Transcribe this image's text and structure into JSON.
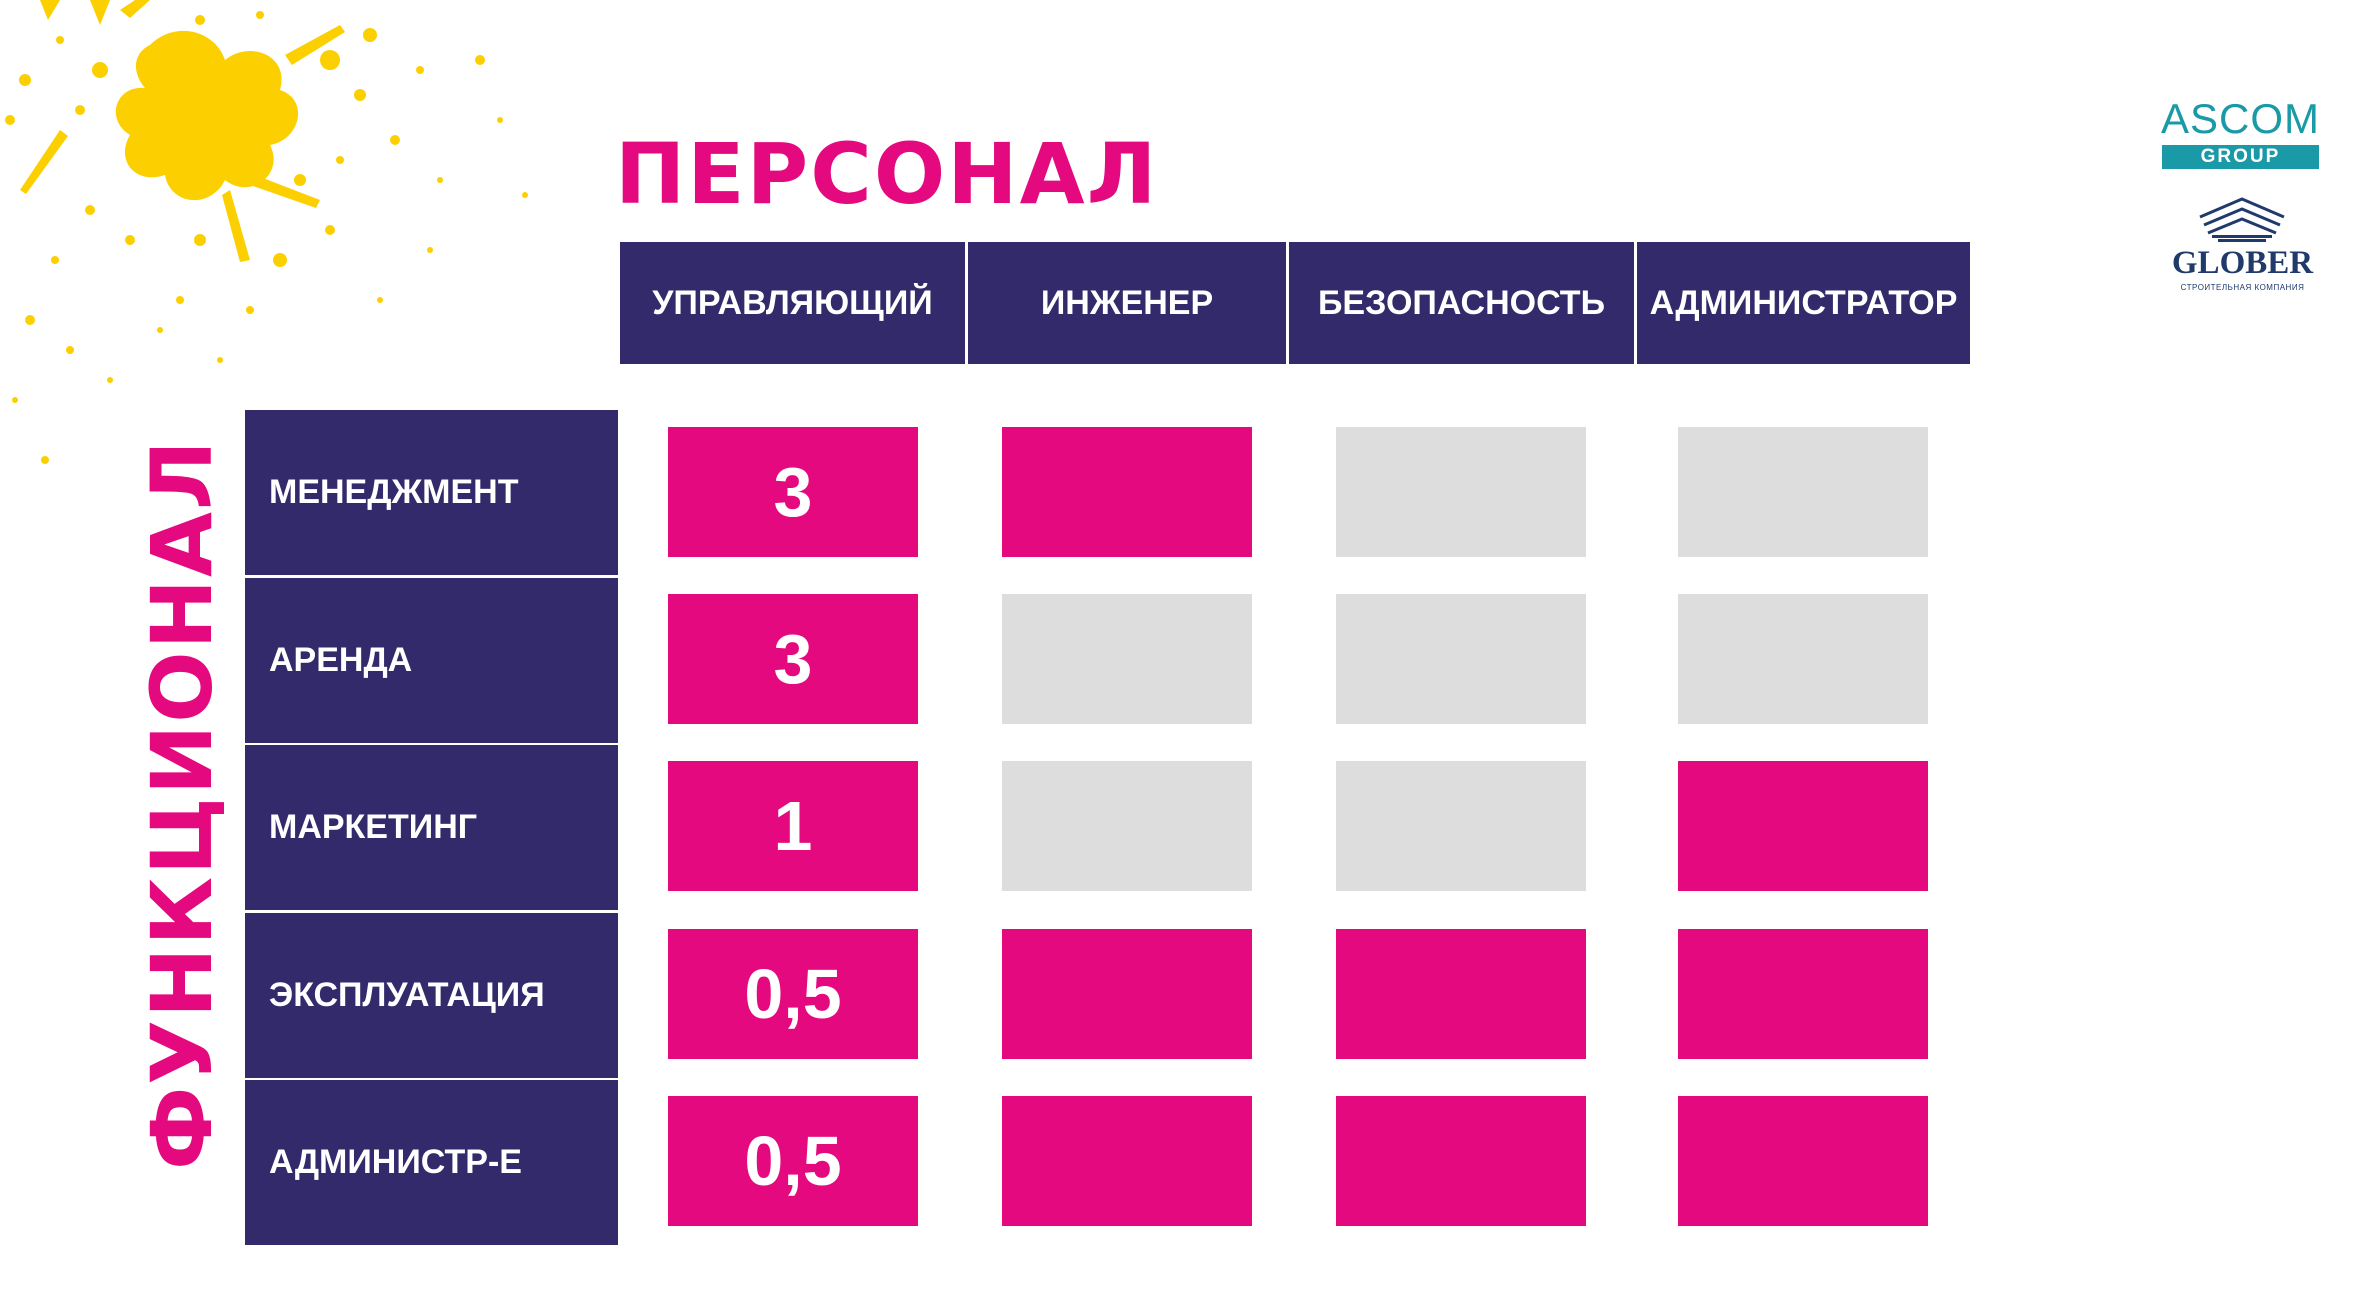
{
  "title_top": "ПЕРСОНАЛ",
  "title_side": "ФУНКЦИОНАЛ",
  "columns": [
    "УПРАВЛЯЮЩИЙ",
    "ИНЖЕНЕР",
    "БЕЗОПАСНОСТЬ",
    "АДМИНИСТРАТОР"
  ],
  "rows": [
    {
      "label": "МЕНЕДЖМЕНТ",
      "cells": [
        {
          "value": "3",
          "active": true
        },
        {
          "value": "",
          "active": true
        },
        {
          "value": "",
          "active": false
        },
        {
          "value": "",
          "active": false
        }
      ]
    },
    {
      "label": "АРЕНДА",
      "cells": [
        {
          "value": "3",
          "active": true
        },
        {
          "value": "",
          "active": false
        },
        {
          "value": "",
          "active": false
        },
        {
          "value": "",
          "active": false
        }
      ]
    },
    {
      "label": "МАРКЕТИНГ",
      "cells": [
        {
          "value": "1",
          "active": true
        },
        {
          "value": "",
          "active": false
        },
        {
          "value": "",
          "active": false
        },
        {
          "value": "",
          "active": true
        }
      ]
    },
    {
      "label": "ЭКСПЛУАТАЦИЯ",
      "cells": [
        {
          "value": "0,5",
          "active": true
        },
        {
          "value": "",
          "active": true
        },
        {
          "value": "",
          "active": true
        },
        {
          "value": "",
          "active": true
        }
      ]
    },
    {
      "label": "АДМИНИСТР-Е",
      "cells": [
        {
          "value": "0,5",
          "active": true
        },
        {
          "value": "",
          "active": true
        },
        {
          "value": "",
          "active": true
        },
        {
          "value": "",
          "active": true
        }
      ]
    }
  ],
  "logos": {
    "ascom_name": "ASCOM",
    "ascom_sub": "GROUP",
    "glober_name": "GLOBER",
    "glober_sub": "СТРОИТЕЛЬНАЯ КОМПАНИЯ"
  },
  "colors": {
    "accent_pink": "#e5097f",
    "header_navy": "#332a6b",
    "inactive_gray": "#dcdddc",
    "splash_yellow": "#fcd000"
  }
}
